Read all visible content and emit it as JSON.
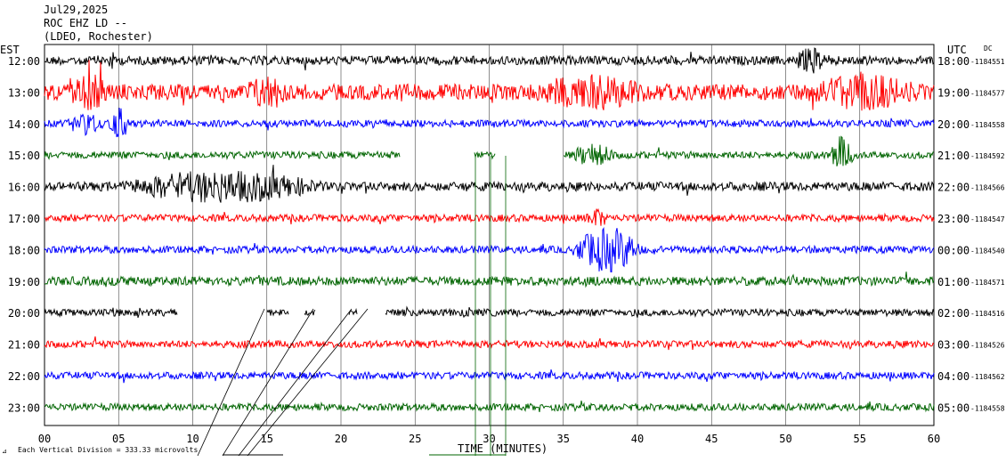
{
  "header": {
    "date": "Jul29,2025",
    "station": "ROC EHZ LD --",
    "network": "(LDEO, Rochester)"
  },
  "labels": {
    "left_zone": "EST",
    "right_zone": "UTC",
    "dc": "DC",
    "x_axis": "TIME (MINUTES)",
    "scale_note": "Each Vertical Division =  333.33 microvolts"
  },
  "colors": {
    "black": "#000000",
    "red": "#ff0000",
    "blue": "#0000ff",
    "green": "#006400",
    "grid": "#000000"
  },
  "chart_data": {
    "type": "line",
    "title": "ROC EHZ LD -- (LDEO, Rochester)",
    "xlabel": "TIME (MINUTES)",
    "xlim": [
      0,
      60
    ],
    "x_ticks": [
      "00",
      "05",
      "10",
      "15",
      "20",
      "25",
      "30",
      "35",
      "40",
      "45",
      "50",
      "55",
      "60"
    ],
    "grid": "vertical lines every 5 minutes",
    "rows": [
      {
        "est": "12:00",
        "utc": "18:00",
        "dc": "-1184551",
        "color": "black",
        "amp": 5,
        "events": [
          {
            "t": 50.5,
            "d": 2.5,
            "a": 10
          },
          {
            "t": 4.3,
            "d": 0.4,
            "a": 8
          }
        ]
      },
      {
        "est": "13:00",
        "utc": "19:00",
        "dc": "-1184577",
        "color": "red",
        "amp": 9,
        "events": [
          {
            "t": 1.5,
            "d": 3,
            "a": 12
          },
          {
            "t": 13.5,
            "d": 3,
            "a": 12
          },
          {
            "t": 33,
            "d": 8,
            "a": 12
          },
          {
            "t": 51,
            "d": 8,
            "a": 12
          }
        ]
      },
      {
        "est": "14:00",
        "utc": "20:00",
        "dc": "-1184558",
        "color": "blue",
        "amp": 4,
        "events": [
          {
            "t": 1.5,
            "d": 2.5,
            "a": 9
          },
          {
            "t": 4.3,
            "d": 1.5,
            "a": 14
          }
        ]
      },
      {
        "est": "15:00",
        "utc": "21:00",
        "dc": "-1184592",
        "color": "green",
        "amp": 4,
        "gaps": [
          [
            24,
            29
          ],
          [
            30.4,
            35
          ]
        ],
        "events": [
          {
            "t": 35.5,
            "d": 3,
            "a": 10
          },
          {
            "t": 53,
            "d": 1.6,
            "a": 18
          }
        ]
      },
      {
        "est": "16:00",
        "utc": "22:00",
        "dc": "-1184566",
        "color": "black",
        "amp": 5,
        "events": [
          {
            "t": 5,
            "d": 14,
            "a": 14
          }
        ]
      },
      {
        "est": "17:00",
        "utc": "23:00",
        "dc": "-1184547",
        "color": "red",
        "amp": 4,
        "events": [
          {
            "t": 36.5,
            "d": 1.5,
            "a": 8
          }
        ]
      },
      {
        "est": "18:00",
        "utc": "00:00",
        "dc": "-1184540",
        "color": "blue",
        "amp": 4,
        "events": [
          {
            "t": 35.5,
            "d": 5,
            "a": 22
          }
        ]
      },
      {
        "est": "19:00",
        "utc": "01:00",
        "dc": "-1184571",
        "color": "green",
        "amp": 5,
        "events": []
      },
      {
        "est": "20:00",
        "utc": "02:00",
        "dc": "-1184516",
        "color": "black",
        "amp": 4,
        "gaps": [
          [
            9,
            15
          ],
          [
            16.5,
            17.5
          ],
          [
            18.3,
            20.5
          ],
          [
            21.1,
            23
          ]
        ],
        "events": []
      },
      {
        "est": "21:00",
        "utc": "03:00",
        "dc": "-1184526",
        "color": "red",
        "amp": 4,
        "events": []
      },
      {
        "est": "22:00",
        "utc": "04:00",
        "dc": "-1184562",
        "color": "blue",
        "amp": 4,
        "events": []
      },
      {
        "est": "23:00",
        "utc": "05:00",
        "dc": "-1184558",
        "color": "green",
        "amp": 4,
        "events": []
      }
    ]
  }
}
